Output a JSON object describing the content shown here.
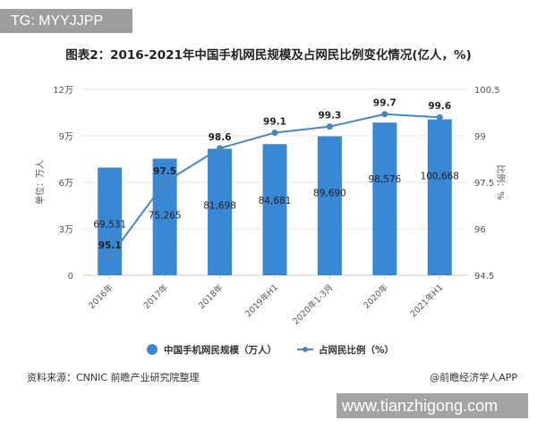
{
  "header_tag": "TG: MYYJJPP",
  "watermark_site": "www.tianzhigong.com",
  "source": "资料来源：CNNIC 前瞻产业研究院整理",
  "credit": "@前瞻经济学人APP",
  "chart_data": {
    "type": "bar+line",
    "title": "图表2：2016-2021年中国手机网民规模及占网民比例变化情况(亿人，%)",
    "categories": [
      "2016年",
      "2017年",
      "2018年",
      "2019年H1",
      "2020年1-3月",
      "2020年",
      "2021年H1"
    ],
    "ylabel_left": "单位：万人",
    "ylabel_right": "比例：%",
    "yticks_left": [
      "0",
      "3万",
      "6万",
      "9万",
      "12万"
    ],
    "ylim_left": [
      0,
      120000
    ],
    "yticks_right": [
      "94.5",
      "96",
      "97.5",
      "99",
      "100.5"
    ],
    "ylim_right": [
      94.5,
      100.5
    ],
    "grid": true,
    "legend_placement": "bottom",
    "series": [
      {
        "name": "中国手机网民规模（万人）",
        "type": "bar",
        "axis": "left",
        "color": "#3a87d3",
        "values": [
          69531,
          75265,
          81698,
          84681,
          89690,
          98576,
          100668
        ],
        "labels": [
          "69,531",
          "75,265",
          "81,698",
          "84,681",
          "89,690",
          "98,576",
          "100,668"
        ]
      },
      {
        "name": "占网民比例（%）",
        "type": "line",
        "axis": "right",
        "color": "#4a86b6",
        "values": [
          95.1,
          97.5,
          98.6,
          99.1,
          99.3,
          99.7,
          99.6
        ],
        "labels": [
          "95.1",
          "97.5",
          "98.6",
          "99.1",
          "99.3",
          "99.7",
          "99.6"
        ]
      }
    ]
  }
}
